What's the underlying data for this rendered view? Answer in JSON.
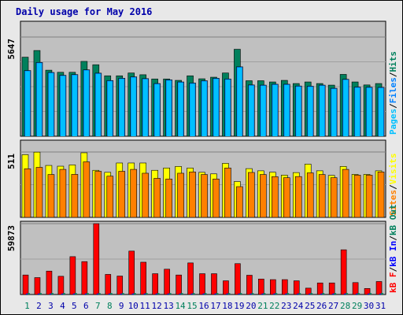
{
  "title": "Daily usage for May 2016",
  "colors": {
    "background": "#e8e8e8",
    "plot_bg": "#c0c0c0",
    "title": "#0000aa",
    "hits": "#00805c",
    "files": "#0080ff",
    "pages": "#00c0ff",
    "visits": "#ffff00",
    "sites": "#ff8000",
    "kb_f": "#ff0000",
    "kb_in": "#0000ff",
    "kb_out": "#00805c",
    "weekend_day": "#00805c",
    "weekday": "#0000aa"
  },
  "chart_data": [
    {
      "type": "bar",
      "panel": "hits_files_pages",
      "categories": [
        "1",
        "2",
        "3",
        "4",
        "5",
        "6",
        "7",
        "8",
        "9",
        "10",
        "11",
        "12",
        "13",
        "14",
        "15",
        "16",
        "17",
        "18",
        "19",
        "20",
        "21",
        "22",
        "23",
        "24",
        "25",
        "26",
        "27",
        "28",
        "29",
        "30",
        "31"
      ],
      "ymax_label": "5647",
      "ylim": [
        0,
        5647
      ],
      "series": [
        {
          "name": "Hits",
          "values": [
            4500,
            4880,
            3760,
            3640,
            3640,
            4260,
            4070,
            3440,
            3440,
            3600,
            3500,
            3260,
            3260,
            3180,
            3440,
            3270,
            3360,
            3600,
            4950,
            3160,
            3160,
            3090,
            3180,
            3000,
            3090,
            3000,
            2910,
            3520,
            3090,
            2920,
            3000
          ]
        },
        {
          "name": "Files",
          "values": [
            3740,
            4200,
            3630,
            3470,
            3510,
            3780,
            3590,
            3170,
            3300,
            3380,
            3280,
            3000,
            3210,
            3090,
            3030,
            3160,
            3300,
            3260,
            3950,
            2920,
            2910,
            2960,
            2960,
            2860,
            2850,
            2910,
            2730,
            3240,
            2800,
            2790,
            2780
          ]
        },
        {
          "name": "Pages",
          "values": [
            3740,
            4200,
            3630,
            3470,
            3510,
            3780,
            3590,
            3170,
            3300,
            3380,
            3280,
            3000,
            3210,
            3090,
            3030,
            3160,
            3300,
            3260,
            3950,
            2920,
            2910,
            2960,
            2960,
            2860,
            2850,
            2910,
            2730,
            3240,
            2800,
            2790,
            2780
          ]
        }
      ],
      "axis_label_parts": [
        "Pages",
        "/",
        "Files",
        "/",
        "Hits"
      ]
    },
    {
      "type": "bar",
      "panel": "visits_sites",
      "categories": [
        "1",
        "2",
        "3",
        "4",
        "5",
        "6",
        "7",
        "8",
        "9",
        "10",
        "11",
        "12",
        "13",
        "14",
        "15",
        "16",
        "17",
        "18",
        "19",
        "20",
        "21",
        "22",
        "23",
        "24",
        "25",
        "26",
        "27",
        "28",
        "29",
        "30",
        "31"
      ],
      "ymax_label": "511",
      "ylim": [
        0,
        511
      ],
      "series": [
        {
          "name": "Visits",
          "values": [
            490,
            510,
            406,
            400,
            410,
            505,
            368,
            352,
            425,
            425,
            425,
            368,
            386,
            398,
            386,
            352,
            340,
            422,
            280,
            381,
            364,
            353,
            330,
            350,
            416,
            364,
            328,
            398,
            336,
            336,
            364
          ]
        },
        {
          "name": "Sites",
          "values": [
            380,
            391,
            335,
            375,
            336,
            434,
            360,
            322,
            360,
            375,
            345,
            305,
            300,
            345,
            355,
            335,
            300,
            386,
            240,
            351,
            335,
            318,
            310,
            319,
            348,
            335,
            310,
            375,
            330,
            330,
            355
          ]
        }
      ],
      "axis_label_parts": [
        "Sites",
        "/",
        "Visits"
      ]
    },
    {
      "type": "bar",
      "panel": "kbytes",
      "categories": [
        "1",
        "2",
        "3",
        "4",
        "5",
        "6",
        "7",
        "8",
        "9",
        "10",
        "11",
        "12",
        "13",
        "14",
        "15",
        "16",
        "17",
        "18",
        "19",
        "20",
        "21",
        "22",
        "23",
        "24",
        "25",
        "26",
        "27",
        "28",
        "29",
        "30",
        "31"
      ],
      "ymax_label": "59873",
      "ylim": [
        0,
        59873
      ],
      "series": [
        {
          "name": "kB F",
          "values": [
            16500,
            14300,
            19800,
            15400,
            32000,
            27800,
            59873,
            17000,
            15600,
            36700,
            27300,
            17600,
            21400,
            16500,
            26700,
            17600,
            17600,
            11600,
            26100,
            16300,
            13100,
            12600,
            12600,
            11600,
            5400,
            9800,
            9800,
            37800,
            10100,
            5100,
            11000
          ]
        },
        {
          "name": "kB In",
          "values": [
            800,
            800,
            800,
            800,
            800,
            800,
            800,
            800,
            800,
            800,
            800,
            800,
            800,
            800,
            800,
            800,
            800,
            800,
            800,
            800,
            800,
            800,
            800,
            800,
            800,
            800,
            800,
            800,
            800,
            800,
            800
          ]
        },
        {
          "name": "kB Out",
          "values": [
            1200,
            1200,
            1200,
            1200,
            1200,
            1200,
            1200,
            1200,
            1200,
            1200,
            1200,
            1200,
            1200,
            1200,
            1200,
            1200,
            1200,
            1200,
            1200,
            1200,
            1200,
            1200,
            1200,
            1200,
            1200,
            1200,
            1200,
            1200,
            1200,
            1200,
            1200
          ]
        }
      ],
      "axis_label_parts": [
        "kB F",
        "/",
        "kB In",
        "/",
        "kB Out"
      ]
    }
  ],
  "weekend_days": [
    "1",
    "7",
    "8",
    "14",
    "15",
    "21",
    "22",
    "28",
    "29"
  ]
}
